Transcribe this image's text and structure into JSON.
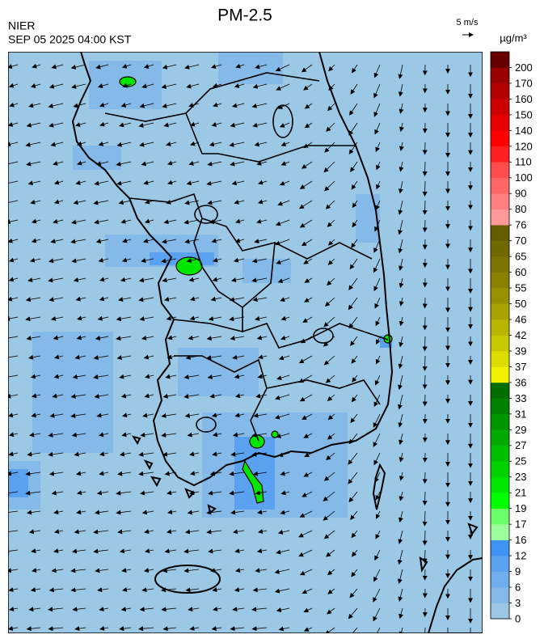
{
  "header": {
    "title": "PM-2.5",
    "source": "NIER",
    "time": "SEP 05 2025 04:00 KST"
  },
  "wind_scale": {
    "label": "5 m/s"
  },
  "legend": {
    "unit": "µg/m³",
    "ticks": [
      0,
      3,
      6,
      9,
      12,
      16,
      17,
      19,
      21,
      23,
      25,
      27,
      29,
      31,
      33,
      36,
      37,
      39,
      42,
      46,
      50,
      55,
      60,
      65,
      70,
      76,
      80,
      90,
      100,
      110,
      120,
      140,
      150,
      160,
      170,
      200
    ],
    "colors": [
      "#9bc8e4",
      "#84b9e8",
      "#6fadec",
      "#5aa1ef",
      "#3f93f2",
      "#9cff9c",
      "#6cff6c",
      "#00ff00",
      "#00e600",
      "#00d200",
      "#00be00",
      "#00aa00",
      "#009600",
      "#008200",
      "#006e00",
      "#f0f000",
      "#dcdc00",
      "#c8c800",
      "#b8b400",
      "#a8a300",
      "#989200",
      "#888200",
      "#7c7400",
      "#706800",
      "#665c00",
      "#ff9999",
      "#ff8080",
      "#ff6666",
      "#ff4d4d",
      "#ff2020",
      "#ff0000",
      "#e60000",
      "#cc0000",
      "#b30000",
      "#990000",
      "#660000"
    ]
  }
}
